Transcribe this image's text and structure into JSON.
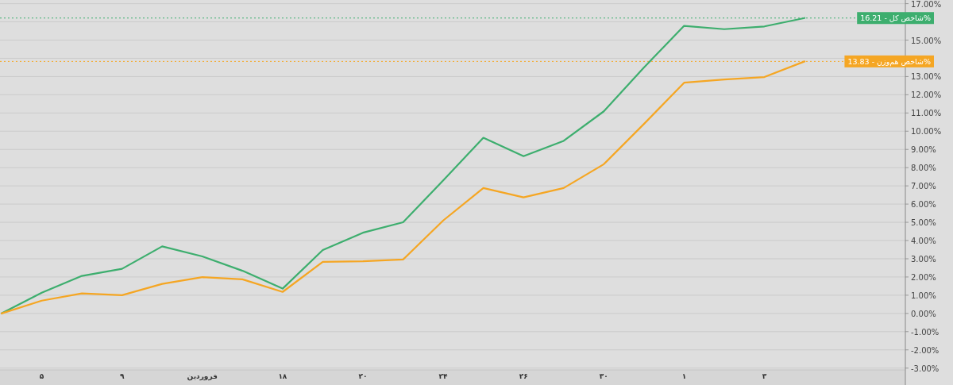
{
  "chart_data": {
    "type": "line",
    "categories": [
      null,
      "۵",
      null,
      "۹",
      null,
      "فروردین",
      null,
      "۱۸",
      null,
      "۲۰",
      null,
      "۲۴",
      null,
      "۲۶",
      null,
      "۳۰",
      null,
      "۱",
      null,
      "۳",
      null
    ],
    "series": [
      {
        "color": "#3dae6e",
        "values": [
          0,
          1.14,
          2.06,
          2.45,
          3.68,
          3.13,
          2.34,
          1.36,
          3.48,
          4.43,
          5.0,
          7.3,
          9.64,
          8.63,
          9.47,
          11.09,
          13.5,
          15.78,
          15.6,
          15.75,
          16.21
        ]
      },
      {
        "color": "#f5a623",
        "values": [
          0,
          0.7,
          1.1,
          1.0,
          1.62,
          1.99,
          1.87,
          1.18,
          2.83,
          2.86,
          2.96,
          5.1,
          6.88,
          6.37,
          6.88,
          8.19,
          10.4,
          12.66,
          12.84,
          12.97,
          13.83
        ]
      }
    ],
    "ylim": [
      -3.1,
      17.2
    ],
    "yticks": [
      {
        "value": -3,
        "label": "-3.00%"
      },
      {
        "value": -2,
        "label": "-2.00%"
      },
      {
        "value": -1,
        "label": "-1.00%"
      },
      {
        "value": 0,
        "label": "0.00%"
      },
      {
        "value": 1,
        "label": "1.00%"
      },
      {
        "value": 2,
        "label": "2.00%"
      },
      {
        "value": 3,
        "label": "3.00%"
      },
      {
        "value": 4,
        "label": "4.00%"
      },
      {
        "value": 5,
        "label": "5.00%"
      },
      {
        "value": 6,
        "label": "6.00%"
      },
      {
        "value": 7,
        "label": "7.00%"
      },
      {
        "value": 8,
        "label": "8.00%"
      },
      {
        "value": 9,
        "label": "9.00%"
      },
      {
        "value": 10,
        "label": "10.00%"
      },
      {
        "value": 11,
        "label": "11.00%"
      },
      {
        "value": 12,
        "label": "12.00%"
      },
      {
        "value": 13,
        "label": "13.00%"
      },
      {
        "value": 14,
        "label": null
      },
      {
        "value": 15,
        "label": "15.00%"
      },
      {
        "value": 16,
        "label": null
      },
      {
        "value": 17,
        "label": "17.00%"
      }
    ],
    "ref_lines": [
      {
        "axis": "y",
        "value": 16.21,
        "label": "شاخص کل - 16.21%",
        "color": "#3dae6e",
        "line_style": "dotted"
      },
      {
        "axis": "y",
        "value": 13.83,
        "label": "شاخص هم‌وزن - 13.83%",
        "color": "#f5a623",
        "line_style": "dotted"
      }
    ],
    "grid": "y",
    "line_style": "solid",
    "marker": "none"
  }
}
